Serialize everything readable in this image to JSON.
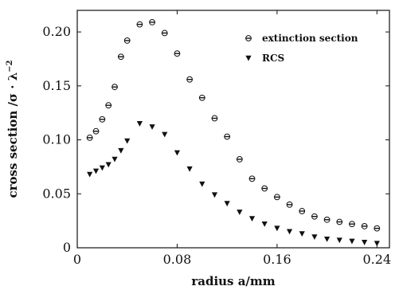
{
  "chart_data": {
    "type": "scatter",
    "title": "",
    "xlabel": "radius   a/mm",
    "ylabel": "cross section /σ · λ",
    "ylabel_exponent": "−2",
    "xlim": [
      0,
      0.25
    ],
    "ylim": [
      0,
      0.22
    ],
    "x_ticks": [
      0,
      0.08,
      0.16,
      0.24
    ],
    "x_tick_labels": [
      "0",
      "0.08",
      "0.16",
      "0.24"
    ],
    "y_ticks": [
      0,
      0.05,
      0.1,
      0.15,
      0.2
    ],
    "y_tick_labels": [
      "0",
      "0.05",
      "0.10",
      "0.15",
      "0.20"
    ],
    "grid": false,
    "legend_position": "top-right",
    "series": [
      {
        "name": "extinction section",
        "marker": "circle-dot",
        "x": [
          0.01,
          0.015,
          0.02,
          0.025,
          0.03,
          0.035,
          0.04,
          0.05,
          0.06,
          0.07,
          0.08,
          0.09,
          0.1,
          0.11,
          0.12,
          0.13,
          0.14,
          0.15,
          0.16,
          0.17,
          0.18,
          0.19,
          0.2,
          0.21,
          0.22,
          0.23,
          0.24
        ],
        "y": [
          0.102,
          0.108,
          0.119,
          0.132,
          0.149,
          0.177,
          0.192,
          0.207,
          0.209,
          0.199,
          0.18,
          0.156,
          0.139,
          0.12,
          0.103,
          0.082,
          0.064,
          0.055,
          0.047,
          0.04,
          0.034,
          0.029,
          0.026,
          0.024,
          0.022,
          0.02,
          0.018
        ]
      },
      {
        "name": "RCS",
        "marker": "triangle-down",
        "x": [
          0.01,
          0.015,
          0.02,
          0.025,
          0.03,
          0.035,
          0.04,
          0.05,
          0.06,
          0.07,
          0.08,
          0.09,
          0.1,
          0.11,
          0.12,
          0.13,
          0.14,
          0.15,
          0.16,
          0.17,
          0.18,
          0.19,
          0.2,
          0.21,
          0.22,
          0.23,
          0.24
        ],
        "y": [
          0.068,
          0.071,
          0.074,
          0.077,
          0.082,
          0.09,
          0.099,
          0.115,
          0.112,
          0.105,
          0.088,
          0.073,
          0.059,
          0.049,
          0.041,
          0.033,
          0.027,
          0.022,
          0.018,
          0.015,
          0.013,
          0.01,
          0.008,
          0.007,
          0.006,
          0.005,
          0.004
        ]
      }
    ]
  }
}
